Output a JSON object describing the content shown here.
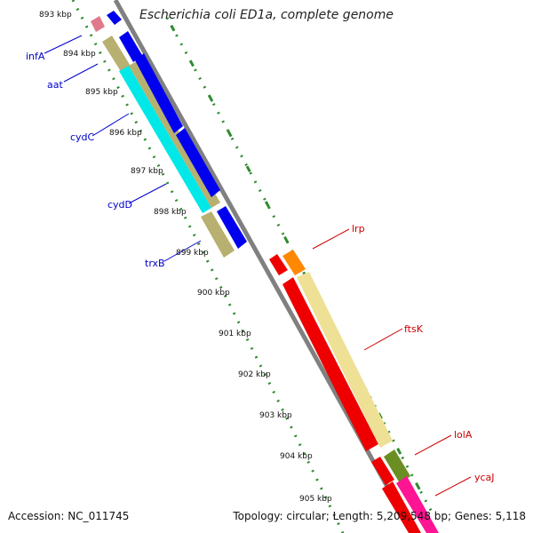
{
  "title": "Escherichia coli ED1a, complete genome",
  "footer": {
    "accession": "Accession: NC_011745",
    "topology": "Topology: circular; Length: 5,209,548 bp; Genes: 5,118"
  },
  "colors": {
    "backbone": "#808080",
    "tick_dots": "#2e8b2e",
    "label_blue": "#0000cc",
    "label_red": "#cc0000"
  },
  "ticks": [
    {
      "kbp": 893,
      "label": "893 kbp"
    },
    {
      "kbp": 894,
      "label": "894 kbp"
    },
    {
      "kbp": 895,
      "label": "895 kbp"
    },
    {
      "kbp": 896,
      "label": "896 kbp"
    },
    {
      "kbp": 897,
      "label": "897 kbp"
    },
    {
      "kbp": 898,
      "label": "898 kbp"
    },
    {
      "kbp": 899,
      "label": "899 kbp"
    },
    {
      "kbp": 900,
      "label": "900 kbp"
    },
    {
      "kbp": 901,
      "label": "901 kbp"
    },
    {
      "kbp": 902,
      "label": "902 kbp"
    },
    {
      "kbp": 903,
      "label": "903 kbp"
    },
    {
      "kbp": 904,
      "label": "904 kbp"
    },
    {
      "kbp": 905,
      "label": "905 kbp"
    }
  ],
  "genes": [
    {
      "name": "infA",
      "color": "#0000cc",
      "strand": "forward"
    },
    {
      "name": "aat",
      "color": "#0000cc",
      "strand": "forward"
    },
    {
      "name": "cydC",
      "color": "#0000cc",
      "strand": "forward"
    },
    {
      "name": "cydD",
      "color": "#0000cc",
      "strand": "forward"
    },
    {
      "name": "trxB",
      "color": "#0000cc",
      "strand": "forward"
    },
    {
      "name": "lrp",
      "color": "#cc0000",
      "strand": "reverse"
    },
    {
      "name": "ftsK",
      "color": "#cc0000",
      "strand": "reverse"
    },
    {
      "name": "lolA",
      "color": "#cc0000",
      "strand": "reverse"
    },
    {
      "name": "ycaJ",
      "color": "#cc0000",
      "strand": "reverse"
    }
  ]
}
